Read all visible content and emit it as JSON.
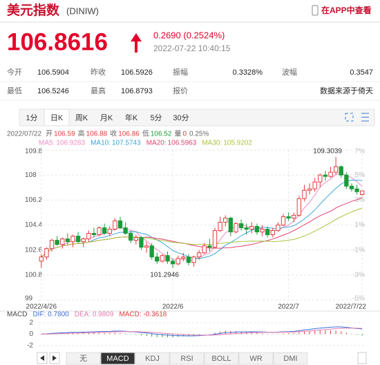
{
  "header": {
    "title": "美元指数",
    "code": "(DINIW)",
    "app_link": "在APP中查看"
  },
  "quote": {
    "price": "106.8616",
    "change": "0.2690 (0.2524%)",
    "time": "2022-07-22 10:40:15"
  },
  "stats": [
    [
      [
        "今开",
        "106.5904"
      ],
      [
        "昨收",
        "106.5926"
      ],
      [
        "振幅",
        "0.3328%"
      ],
      [
        "波幅",
        "0.3547"
      ]
    ],
    [
      [
        "最低",
        "106.5246"
      ],
      [
        "最高",
        "106.8793"
      ],
      [
        "报价",
        "数据来源于倚天"
      ]
    ]
  ],
  "tabs": [
    "1分",
    "日K",
    "周K",
    "月K",
    "年K",
    "5分",
    "30分"
  ],
  "info": [
    [
      "2022/07/22",
      ""
    ],
    [
      "开",
      "106.59"
    ],
    [
      "高",
      "106.88"
    ],
    [
      "收",
      "106.86"
    ],
    [
      "低",
      "106.52"
    ],
    [
      "量",
      "0"
    ],
    [
      "0.25%",
      ""
    ]
  ],
  "bottom_tabs": [
    "无",
    "MACD",
    "KDJ",
    "RSI",
    "BOLL",
    "WR",
    "DMI"
  ],
  "chart": {
    "type": "candlestick",
    "up_color": "#e4393c",
    "down_color": "#1a9c3a",
    "grid": true,
    "ylim": [
      99,
      109.8
    ],
    "yticks": [
      109.8,
      108,
      106.2,
      104.4,
      102.6,
      100.8,
      99
    ],
    "y2ticks": [
      "7%",
      "5%",
      "3%",
      "1%",
      "-1%",
      "-3%",
      "-5%"
    ],
    "x_labels": [
      {
        "label": "2022/4/26",
        "index": 0
      },
      {
        "label": "2022/6",
        "index": 25
      },
      {
        "label": "2022/7",
        "index": 47
      },
      {
        "label": "2022/7/22",
        "index": 61
      }
    ],
    "annotations": [
      {
        "label": "109.3039",
        "index": 56,
        "value": 109.3
      },
      {
        "label": "101.2946",
        "index": 25,
        "value": 101.3
      }
    ],
    "ma": [
      {
        "name": "MA5:",
        "value": "106.9283",
        "color": "#f08cc4"
      },
      {
        "name": "MA10:",
        "value": "107.5743",
        "color": "#3aa6d8"
      },
      {
        "name": "MA20:",
        "value": "106.5963",
        "color": "#e0406e"
      },
      {
        "name": "MA30:",
        "value": "105.9202",
        "color": "#a8c43c"
      }
    ],
    "candles": [
      [
        101.8,
        102.3,
        101.3,
        102.1
      ],
      [
        102.1,
        102.8,
        101.9,
        102.7
      ],
      [
        102.7,
        103.4,
        102.5,
        103.3
      ],
      [
        103.3,
        103.6,
        102.9,
        103.0
      ],
      [
        103.0,
        103.5,
        102.7,
        103.4
      ],
      [
        103.4,
        103.8,
        103.0,
        103.2
      ],
      [
        103.2,
        103.7,
        102.8,
        103.6
      ],
      [
        103.6,
        103.9,
        103.1,
        103.2
      ],
      [
        103.2,
        103.5,
        102.8,
        103.4
      ],
      [
        103.4,
        104.0,
        103.2,
        103.8
      ],
      [
        103.8,
        104.2,
        103.5,
        103.7
      ],
      [
        103.7,
        104.3,
        103.6,
        104.2
      ],
      [
        104.2,
        104.5,
        103.7,
        103.8
      ],
      [
        103.8,
        104.3,
        103.6,
        104.1
      ],
      [
        104.1,
        104.9,
        104.0,
        104.7
      ],
      [
        104.7,
        105.0,
        104.1,
        104.2
      ],
      [
        104.2,
        104.6,
        103.7,
        103.8
      ],
      [
        103.8,
        104.0,
        103.1,
        103.3
      ],
      [
        103.3,
        103.7,
        103.0,
        103.5
      ],
      [
        103.5,
        103.6,
        102.6,
        102.8
      ],
      [
        102.8,
        103.2,
        102.4,
        102.9
      ],
      [
        102.9,
        103.1,
        101.9,
        102.1
      ],
      [
        102.1,
        102.4,
        101.6,
        101.8
      ],
      [
        101.8,
        102.3,
        101.7,
        102.2
      ],
      [
        102.2,
        102.5,
        101.6,
        101.8
      ],
      [
        101.8,
        102.0,
        101.3,
        101.6
      ],
      [
        101.6,
        102.2,
        101.5,
        102.0
      ],
      [
        102.0,
        102.4,
        101.8,
        102.1
      ],
      [
        102.1,
        102.3,
        101.5,
        101.7
      ],
      [
        101.7,
        102.2,
        101.4,
        102.1
      ],
      [
        102.1,
        102.6,
        101.9,
        102.4
      ],
      [
        102.4,
        103.1,
        102.3,
        102.9
      ],
      [
        102.9,
        103.4,
        102.5,
        102.8
      ],
      [
        102.8,
        104.2,
        102.7,
        104.0
      ],
      [
        104.0,
        105.0,
        103.9,
        104.6
      ],
      [
        104.6,
        105.1,
        104.3,
        104.9
      ],
      [
        104.9,
        105.0,
        103.6,
        103.9
      ],
      [
        103.9,
        104.6,
        103.8,
        104.5
      ],
      [
        104.5,
        104.8,
        104.0,
        104.2
      ],
      [
        104.2,
        104.5,
        103.7,
        104.1
      ],
      [
        104.1,
        104.6,
        103.8,
        104.3
      ],
      [
        104.3,
        104.5,
        103.7,
        103.9
      ],
      [
        103.9,
        104.4,
        103.6,
        104.1
      ],
      [
        104.1,
        104.3,
        103.5,
        103.7
      ],
      [
        103.7,
        104.2,
        103.5,
        104.0
      ],
      [
        104.0,
        104.6,
        103.9,
        104.4
      ],
      [
        104.4,
        105.2,
        104.3,
        105.0
      ],
      [
        105.0,
        105.3,
        104.7,
        104.9
      ],
      [
        104.9,
        105.3,
        104.6,
        105.1
      ],
      [
        105.1,
        106.5,
        105.0,
        106.3
      ],
      [
        106.3,
        107.3,
        106.1,
        106.9
      ],
      [
        106.9,
        107.4,
        106.6,
        107.0
      ],
      [
        107.0,
        107.8,
        106.8,
        107.5
      ],
      [
        107.5,
        108.1,
        107.1,
        108.0
      ],
      [
        108.0,
        108.3,
        107.6,
        107.9
      ],
      [
        107.9,
        108.6,
        107.8,
        108.2
      ],
      [
        108.2,
        109.3,
        108.0,
        108.6
      ],
      [
        108.6,
        108.7,
        107.8,
        108.0
      ],
      [
        108.0,
        108.2,
        107.0,
        107.2
      ],
      [
        107.2,
        107.4,
        106.8,
        107.0
      ],
      [
        107.0,
        107.3,
        106.6,
        106.8
      ],
      [
        106.59,
        106.88,
        106.52,
        106.86
      ]
    ],
    "macd": {
      "legend": [
        "MACD",
        "DIF: 0.7800",
        "DEA: 0.9809",
        "MACD: -0.3618"
      ],
      "ylim": [
        -2.4,
        2.6
      ],
      "yticks": [
        2,
        0,
        -2
      ],
      "dif_color": "#3b6fd8",
      "dea_color": "#e07bb0"
    }
  }
}
